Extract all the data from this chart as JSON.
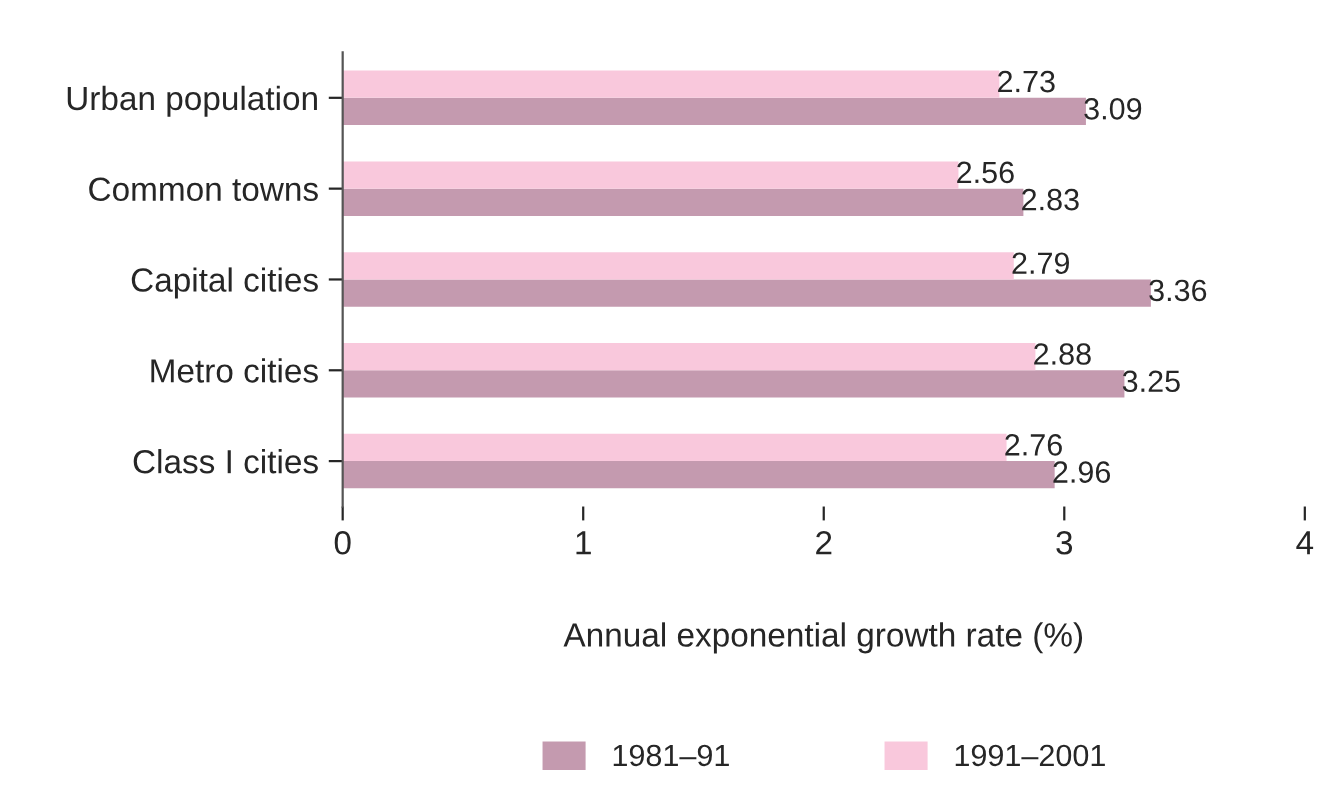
{
  "chart_data": {
    "type": "bar",
    "orientation": "horizontal",
    "xlabel": "Annual exponential growth rate (%)",
    "categories": [
      "Urban population",
      "Common towns",
      "Capital cities",
      "Metro cities",
      "Class I cities"
    ],
    "series": [
      {
        "name": "1981–91",
        "color": "#c49aaf",
        "values": [
          3.09,
          2.83,
          3.36,
          3.25,
          2.96
        ]
      },
      {
        "name": "1991–2001",
        "color": "#f9c8dc",
        "values": [
          2.73,
          2.56,
          2.79,
          2.88,
          2.76
        ]
      }
    ],
    "xlim": [
      0,
      4
    ],
    "xticks": [
      0,
      1,
      2,
      3,
      4
    ],
    "data_labels": true,
    "grid": false,
    "legend": "bottom"
  }
}
